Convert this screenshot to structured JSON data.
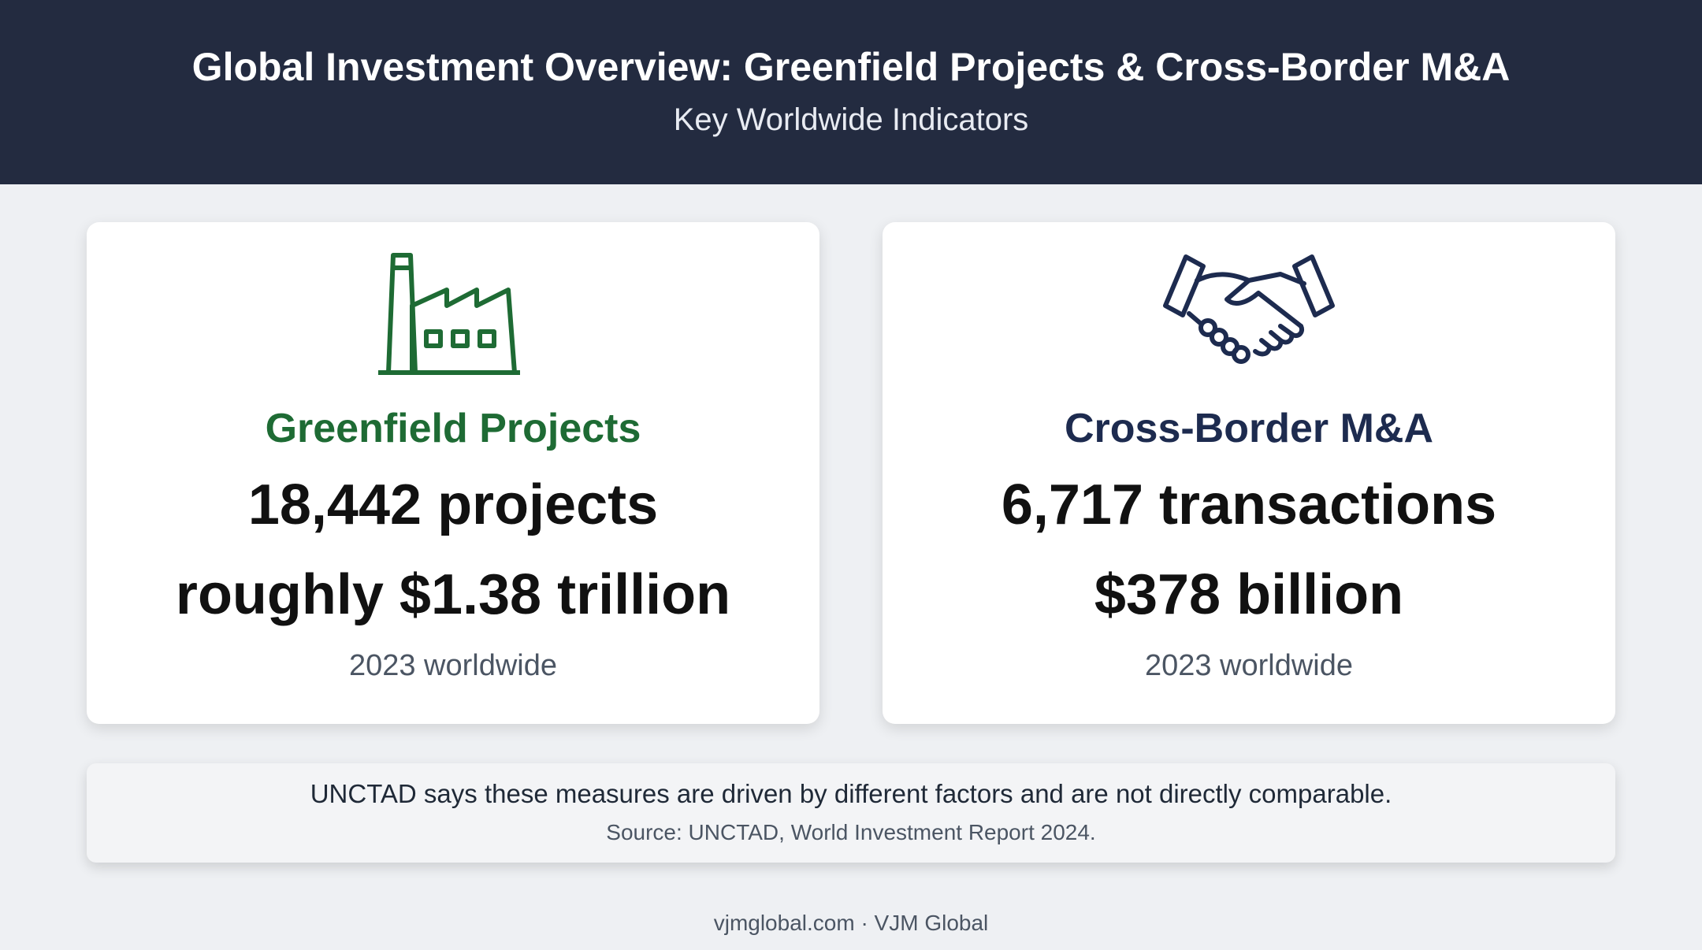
{
  "header": {
    "title": "Global Investment Overview: Greenfield Projects & Cross-Border M&A",
    "subtitle": "Key Worldwide Indicators"
  },
  "cards": [
    {
      "heading": "Greenfield Projects",
      "line1": "18,442 projects",
      "line2": "roughly $1.38 trillion",
      "note": "2023 worldwide"
    },
    {
      "heading": "Cross-Border M&A",
      "line1": "6,717 transactions",
      "line2": "$378 billion",
      "note": "2023 worldwide"
    }
  ],
  "notice": {
    "text": "UNCTAD says these measures are driven by different factors and are not directly comparable.",
    "source": "Source: UNCTAD, World Investment Report 2024."
  },
  "footer": "vjmglobal.com · VJM Global"
}
